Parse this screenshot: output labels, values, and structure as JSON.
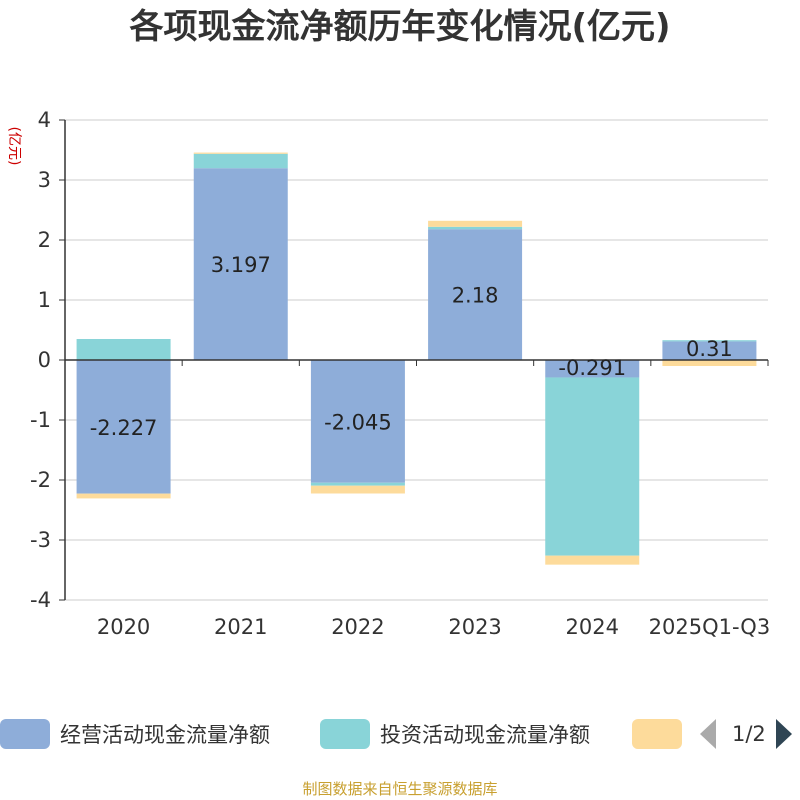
{
  "chart_data": {
    "type": "bar",
    "stacked": true,
    "title": "各项现金流净额历年变化情况(亿元)",
    "ylabel": "(亿元)",
    "xlabel": "",
    "ylim": [
      -4,
      4
    ],
    "yticks": [
      4,
      3,
      2,
      1,
      0,
      -1,
      -2,
      -3,
      -4
    ],
    "categories": [
      "2020",
      "2021",
      "2022",
      "2023",
      "2024",
      "2025Q1-Q3"
    ],
    "series": [
      {
        "name": "经营活动现金流量净额",
        "color": "#8eadd9",
        "values": [
          -2.227,
          3.197,
          -2.045,
          2.18,
          -0.291,
          0.31
        ],
        "labels": [
          "-2.227",
          "3.197",
          "-2.045",
          "2.18",
          "-0.291",
          "0.31"
        ]
      },
      {
        "name": "投资活动现金流量净额",
        "color": "#89d4d8",
        "values": [
          0.35,
          0.24,
          -0.05,
          0.04,
          -2.97,
          0.02
        ],
        "labels": []
      },
      {
        "name": "",
        "color": "#fddb9b",
        "values": [
          -0.08,
          0.02,
          -0.13,
          0.1,
          -0.15,
          -0.1
        ],
        "labels": []
      }
    ],
    "legend": {
      "position": "bottom",
      "page": "1/2"
    }
  },
  "source": "制图数据来自恒生聚源数据库"
}
